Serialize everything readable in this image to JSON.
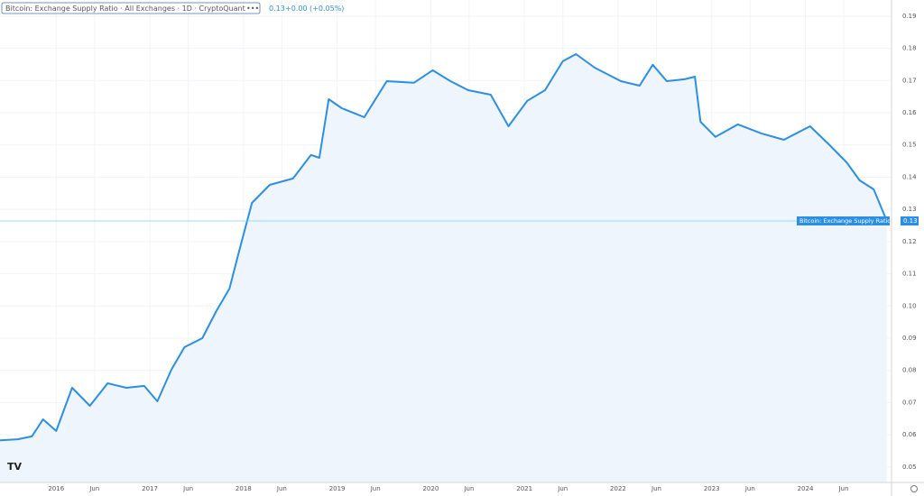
{
  "chart_data": {
    "type": "line",
    "title": "Bitcoin: Exchange Supply Ratio · All Exchanges · 1D · CryptoQuant",
    "last_value": "0.13",
    "change": "+0.00 (+0.05%)",
    "series_label": "Bitcoin: Exchange Supply Ratio · All ...",
    "series_value_label": "0.13",
    "x": [
      2015.4,
      2015.59,
      2015.74,
      2015.86,
      2016.0,
      2016.17,
      2016.36,
      2016.55,
      2016.75,
      2016.94,
      2017.08,
      2017.23,
      2017.37,
      2017.56,
      2017.71,
      2017.85,
      2017.95,
      2018.09,
      2018.28,
      2018.53,
      2018.72,
      2018.81,
      2018.91,
      2019.05,
      2019.29,
      2019.53,
      2019.82,
      2020.02,
      2020.21,
      2020.4,
      2020.64,
      2020.83,
      2021.03,
      2021.22,
      2021.41,
      2021.55,
      2021.75,
      2022.03,
      2022.23,
      2022.37,
      2022.52,
      2022.71,
      2022.82,
      2022.88,
      2023.04,
      2023.28,
      2023.53,
      2023.77,
      2024.05,
      2024.25,
      2024.44,
      2024.58,
      2024.73,
      2024.87
    ],
    "series": [
      {
        "name": "Bitcoin: Exchange Supply Ratio",
        "color": "#2b8fe6",
        "values": [
          0.0583,
          0.0586,
          0.0595,
          0.0648,
          0.0612,
          0.0746,
          0.069,
          0.076,
          0.0746,
          0.0752,
          0.0704,
          0.0802,
          0.0872,
          0.09,
          0.0984,
          0.1054,
          0.1166,
          0.132,
          0.1376,
          0.1396,
          0.1469,
          0.146,
          0.1642,
          0.1614,
          0.1586,
          0.1698,
          0.1693,
          0.1732,
          0.1698,
          0.167,
          0.1656,
          0.1558,
          0.1637,
          0.167,
          0.176,
          0.1782,
          0.174,
          0.1698,
          0.1684,
          0.1749,
          0.1698,
          0.1704,
          0.1712,
          0.1572,
          0.1525,
          0.1564,
          0.1536,
          0.1516,
          0.1558,
          0.1502,
          0.1446,
          0.139,
          0.1362,
          0.1264
        ]
      }
    ],
    "xlim": [
      2015.4,
      2024.92
    ],
    "xticks": [
      2016,
      {
        "value": 2016.41,
        "label": "Jun"
      },
      2017,
      {
        "value": 2017.41,
        "label": "Jun"
      },
      2018,
      {
        "value": 2018.41,
        "label": "Jun"
      },
      2019,
      {
        "value": 2019.41,
        "label": "Jun"
      },
      2020,
      {
        "value": 2020.41,
        "label": "Jun"
      },
      2021,
      {
        "value": 2021.41,
        "label": "Jun"
      },
      2022,
      {
        "value": 2022.41,
        "label": "Jun"
      },
      2023,
      {
        "value": 2023.41,
        "label": "Jun"
      },
      2024,
      {
        "value": 2024.41,
        "label": "Jun"
      }
    ],
    "ylim": [
      0.0452,
      0.195
    ],
    "yticks": [
      0.05,
      0.06,
      0.07,
      0.08,
      0.09,
      {
        "value": 0.1,
        "label": "0.10"
      },
      0.11,
      0.12,
      0.13,
      0.14,
      0.15,
      0.16,
      0.17,
      0.18,
      0.19
    ],
    "grid": true
  }
}
